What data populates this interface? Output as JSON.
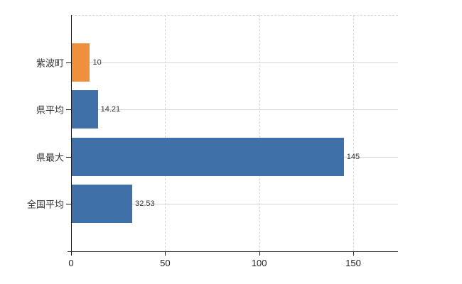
{
  "colors": {
    "bar_blue": "#4070a8",
    "bar_orange": "#f08f3c",
    "grid_solid": "#d6d6d6",
    "grid_dashed": "#d2d6d2",
    "axis": "#1a1a1a",
    "category_text": "#333333",
    "value_text": "#333333",
    "tick_text": "#222222",
    "background": "#ffffff"
  },
  "chart_data": {
    "type": "bar",
    "orientation": "horizontal",
    "title": "",
    "xlabel": "",
    "ylabel": "",
    "legend": "none",
    "categories": [
      "紫波町",
      "県平均",
      "県最大",
      "全国平均"
    ],
    "values": [
      10,
      14.21,
      145,
      32.53
    ],
    "value_labels": [
      "10",
      "14.21",
      "145",
      "32.53"
    ],
    "bar_colors": [
      "#f08f3c",
      "#4070a8",
      "#4070a8",
      "#4070a8"
    ],
    "x_ticks": [
      0,
      50,
      100,
      150
    ],
    "x_tick_labels": [
      "0",
      "50",
      "100",
      "150"
    ],
    "xlim": [
      0,
      173.8
    ],
    "grid": {
      "vertical": "dashed at x ticks",
      "horizontal": "solid at category centers",
      "plot_top_border": "dashed"
    }
  }
}
